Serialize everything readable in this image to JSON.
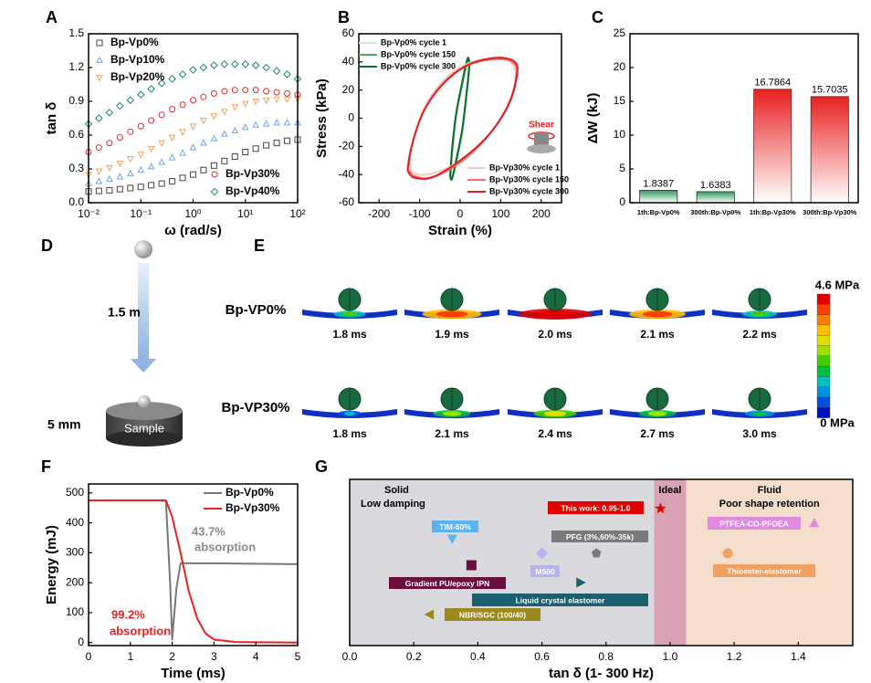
{
  "panel_labels": [
    "A",
    "B",
    "C",
    "D",
    "E",
    "F",
    "G"
  ],
  "drop_test": {
    "height": "1.5 m",
    "thickness": "5 mm",
    "sample": "Sample"
  },
  "simulation": {
    "rows": [
      {
        "label": "Bp-VP0%",
        "times": [
          "1.8 ms",
          "1.9 ms",
          "2.0 ms",
          "2.1 ms",
          "2.2 ms"
        ]
      },
      {
        "label": "Bp-VP30%",
        "times": [
          "1.8 ms",
          "2.1 ms",
          "2.4 ms",
          "2.7 ms",
          "3.0 ms"
        ]
      }
    ],
    "colorbar": {
      "max": "4.6 MPa",
      "min": "0 MPa"
    }
  },
  "chart_data": [
    {
      "type": "scatter",
      "xscale": "log",
      "xlabel": "ω (rad/s)",
      "ylabel": "tan δ",
      "x": [
        0.01,
        0.0158,
        0.0251,
        0.0398,
        0.0631,
        0.1,
        0.158,
        0.251,
        0.398,
        0.631,
        1,
        1.58,
        2.51,
        3.98,
        6.31,
        10,
        15.8,
        25.1,
        39.8,
        63.1,
        100
      ],
      "xlim": [
        0.01,
        100
      ],
      "xticks": [
        {
          "value": 0.01,
          "label": "10⁻²"
        },
        {
          "value": 0.1,
          "label": "10⁻¹"
        },
        {
          "value": 1,
          "label": "10⁰"
        },
        {
          "value": 10,
          "label": "10¹"
        },
        {
          "value": 100,
          "label": "10²"
        }
      ],
      "ylim": [
        0,
        1.5
      ],
      "yticks": [
        {
          "value": 0,
          "label": "0.0"
        },
        0.3,
        0.6,
        0.9,
        1.2,
        1.5
      ],
      "series": [
        {
          "name": "Bp-Vp0%",
          "color": "#444444",
          "marker": "square",
          "legend": "upper left",
          "values": [
            0.1,
            0.105,
            0.11,
            0.12,
            0.13,
            0.14,
            0.155,
            0.17,
            0.19,
            0.22,
            0.25,
            0.29,
            0.33,
            0.37,
            0.41,
            0.45,
            0.48,
            0.51,
            0.53,
            0.55,
            0.56
          ]
        },
        {
          "name": "Bp-Vp10%",
          "color": "#6fa6e6",
          "marker": "triangle",
          "legend": "upper left",
          "values": [
            0.17,
            0.19,
            0.21,
            0.23,
            0.26,
            0.29,
            0.32,
            0.36,
            0.4,
            0.44,
            0.49,
            0.53,
            0.57,
            0.61,
            0.64,
            0.67,
            0.69,
            0.7,
            0.71,
            0.71,
            0.71
          ]
        },
        {
          "name": "Bp-Vp20%",
          "color": "#f2a25e",
          "marker": "triangle-down",
          "legend": "upper left",
          "values": [
            0.25,
            0.28,
            0.31,
            0.35,
            0.39,
            0.43,
            0.48,
            0.53,
            0.58,
            0.63,
            0.68,
            0.73,
            0.77,
            0.81,
            0.85,
            0.88,
            0.9,
            0.91,
            0.92,
            0.92,
            0.92
          ]
        },
        {
          "name": "Bp-Vp30%",
          "color": "#e02a2a",
          "marker": "circle",
          "legend": "lower right",
          "values": [
            0.45,
            0.49,
            0.53,
            0.58,
            0.63,
            0.68,
            0.73,
            0.78,
            0.83,
            0.87,
            0.91,
            0.94,
            0.97,
            0.99,
            1.0,
            1.0,
            1.0,
            0.99,
            0.98,
            0.97,
            0.96
          ]
        },
        {
          "name": "Bp-Vp40%",
          "color": "#1b8a5a",
          "marker": "diamond",
          "legend": "lower right",
          "values": [
            0.7,
            0.75,
            0.8,
            0.86,
            0.91,
            0.96,
            1.01,
            1.06,
            1.1,
            1.14,
            1.18,
            1.2,
            1.22,
            1.23,
            1.23,
            1.23,
            1.22,
            1.2,
            1.17,
            1.14,
            1.1
          ]
        }
      ]
    },
    {
      "type": "line",
      "smooth": true,
      "xlabel": "Strain (%)",
      "ylabel": "Stress (kPa)",
      "annotation": "Shear",
      "xlim": [
        -250,
        250
      ],
      "xticks": [
        -200,
        -100,
        0,
        100,
        200
      ],
      "ylim": [
        -60,
        60
      ],
      "yticks": [
        -60,
        -40,
        -20,
        0,
        20,
        40,
        60
      ],
      "series": [
        {
          "name": "Bp-Vp0% cycle 1",
          "color": "#cfe8cf",
          "legend": "upper left",
          "x": [
            -22,
            -18,
            -8,
            6,
            16,
            22,
            23,
            16,
            6,
            -8,
            -18,
            -22
          ],
          "values": [
            -40,
            -20,
            5,
            25,
            38,
            42,
            34,
            14,
            -10,
            -30,
            -41,
            -40
          ]
        },
        {
          "name": "Bp-Vp0% cycle 150",
          "color": "#48b058",
          "legend": "upper left",
          "x": [
            -24,
            -19,
            -9,
            5,
            15,
            21,
            22,
            15,
            5,
            -9,
            -19,
            -24
          ],
          "values": [
            -41,
            -21,
            4,
            24,
            38,
            42,
            35,
            15,
            -9,
            -30,
            -42,
            -41
          ]
        },
        {
          "name": "Bp-Vp0% cycle 300",
          "color": "#0e6e2e",
          "legend": "upper left",
          "x": [
            -25,
            -20,
            -10,
            4,
            14,
            20,
            22,
            15,
            5,
            -10,
            -20,
            -25
          ],
          "values": [
            -42,
            -22,
            3,
            24,
            38,
            43,
            36,
            16,
            -8,
            -30,
            -43,
            -42
          ]
        },
        {
          "name": "Bp-Vp30% cycle 1",
          "color": "#f4c8c8",
          "legend": "lower right",
          "x": [
            -125,
            -110,
            -80,
            -30,
            30,
            100,
            130,
            135,
            110,
            60,
            -10,
            -80,
            -118,
            -125
          ],
          "values": [
            -30,
            -10,
            12,
            30,
            40,
            42,
            38,
            25,
            5,
            -15,
            -32,
            -40,
            -38,
            -30
          ]
        },
        {
          "name": "Bp-Vp30% cycle 150",
          "color": "#f07070",
          "legend": "lower right",
          "x": [
            -128,
            -118,
            -88,
            -38,
            22,
            92,
            133,
            138,
            118,
            68,
            2,
            -68,
            -113,
            -128
          ],
          "values": [
            -36,
            -18,
            6,
            26,
            38,
            42,
            39,
            29,
            9,
            -13,
            -31,
            -42,
            -41,
            -36
          ]
        },
        {
          "name": "Bp-Vp30% cycle 300",
          "color": "#e02020",
          "legend": "lower right",
          "x": [
            -130,
            -120,
            -90,
            -40,
            20,
            90,
            135,
            140,
            120,
            70,
            0,
            -70,
            -115,
            -130
          ],
          "values": [
            -37,
            -20,
            5,
            25,
            38,
            43,
            40,
            30,
            10,
            -12,
            -30,
            -42,
            -42,
            -37
          ]
        }
      ]
    },
    {
      "type": "bar",
      "ylabel": "ΔW (kJ)",
      "categories": [
        "1th:Bp-Vp0%",
        "300th:Bp-Vp0%",
        "1th:Bp-Vp30%",
        "300th:Bp-Vp30%"
      ],
      "values": [
        1.8387,
        1.6383,
        16.7864,
        15.7035
      ],
      "colors": [
        "#2e9a5a",
        "#2e9a5a",
        "#e82020",
        "#e82020"
      ],
      "ylim": [
        0,
        25
      ],
      "yticks": [
        0,
        5,
        10,
        15,
        20,
        25
      ]
    },
    {
      "type": "line",
      "xlabel": "Time (ms)",
      "ylabel": "Energy (mJ)",
      "legend": "upper right",
      "xlim": [
        0,
        5
      ],
      "xticks": [
        0,
        1,
        2,
        3,
        4,
        5
      ],
      "ylim": [
        -10,
        530
      ],
      "yticks": [
        0,
        100,
        200,
        300,
        400,
        500
      ],
      "series": [
        {
          "name": "Bp-Vp0%",
          "color": "#777777",
          "x": [
            0,
            1.85,
            1.95,
            2.0,
            2.1,
            2.2,
            3,
            5
          ],
          "values": [
            475,
            475,
            200,
            10,
            180,
            265,
            265,
            262
          ]
        },
        {
          "name": "Bp-Vp30%",
          "color": "#e82020",
          "x": [
            0,
            1.85,
            2.0,
            2.2,
            2.4,
            2.6,
            2.8,
            3.0,
            3.5,
            5
          ],
          "values": [
            475,
            475,
            420,
            300,
            170,
            80,
            30,
            10,
            2,
            0
          ]
        }
      ],
      "annotations": [
        {
          "text": "43.7%",
          "color": "#8a8a8a"
        },
        {
          "text": "absorption",
          "color": "#8a8a8a"
        },
        {
          "text": "99.2%",
          "color": "#e82020"
        },
        {
          "text": "absorption",
          "color": "#e82020"
        }
      ]
    },
    {
      "type": "dot",
      "xlabel": "tan δ (1- 300 Hz)",
      "xlim": [
        0,
        1.57
      ],
      "xticks": [
        {
          "value": 0,
          "label": "0.0"
        },
        0.2,
        0.4,
        0.6,
        0.8,
        {
          "value": 1,
          "label": "1.0"
        },
        1.2,
        1.4
      ],
      "regions": [
        {
          "label": [
            "Solid",
            "Low damping"
          ],
          "start": 0,
          "end": 0.95,
          "color": "#d9d9de"
        },
        {
          "label": [
            "Ideal"
          ],
          "start": 0.95,
          "end": 1.05,
          "color": "#d9a3b5"
        },
        {
          "label": [
            "Fluid",
            "Poor shape retention"
          ],
          "start": 1.05,
          "end": 1.57,
          "color": "#f5dfcc"
        }
      ],
      "categories": [
        "This work: 0.95-1.0",
        "TIM-60%",
        "PFG (3%,60%-35k)",
        "PTFEA-CO-PFOEA",
        "M500",
        "Gradient PU/epoxy IPN",
        "Thioester-elastomer",
        "Liquid crystal elastomer",
        "NBR/SGC (100/40)"
      ],
      "values": [
        0.97,
        0.32,
        0.77,
        1.45,
        0.6,
        0.38,
        1.18,
        0.72,
        0.25
      ],
      "colors": [
        "#e00000",
        "#5ab4f0",
        "#7a7a7a",
        "#e08ae0",
        "#b4b4f0",
        "#6a1040",
        "#f0a060",
        "#1a6070",
        "#9a8a20"
      ],
      "markers": [
        "star",
        "triangle-down",
        "pentagon",
        "triangle",
        "diamond",
        "square",
        "circle",
        "triangle-right",
        "triangle-left"
      ]
    }
  ]
}
